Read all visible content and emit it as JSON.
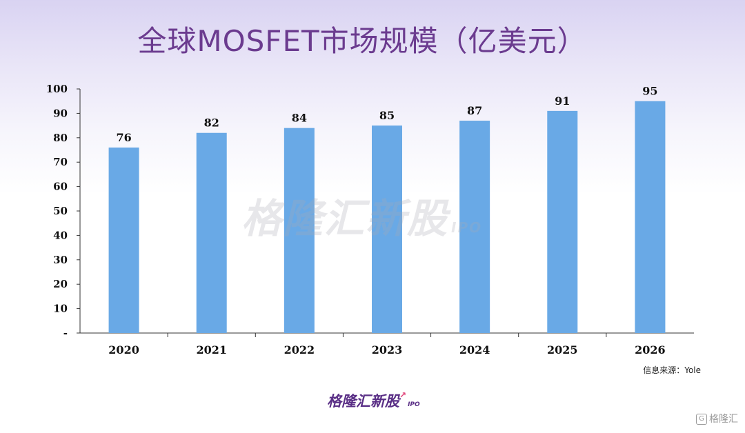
{
  "chart_data": {
    "type": "bar",
    "title": "全球MOSFET市场规模（亿美元）",
    "categories": [
      "2020",
      "2021",
      "2022",
      "2023",
      "2024",
      "2025",
      "2026"
    ],
    "values": [
      76,
      82,
      84,
      85,
      87,
      91,
      95
    ],
    "value_labels": [
      "76",
      "82",
      "84",
      "85",
      "87",
      "91",
      "95"
    ],
    "y_ticks": [
      "-",
      "10",
      "20",
      "30",
      "40",
      "50",
      "60",
      "70",
      "80",
      "90",
      "100"
    ],
    "ylim": [
      0,
      100
    ],
    "grid": false,
    "legend": "none",
    "bar_color": "#69a9e6"
  },
  "source": "信息来源：Yole",
  "watermark": {
    "text": "格隆汇新股",
    "sub": "IPO"
  },
  "footer_logo": {
    "text": "格隆汇新股",
    "sub": "IPO"
  },
  "corner_logo": {
    "icon": "g-logo-icon",
    "text": "格隆汇"
  },
  "colors": {
    "title": "#6b3b8f",
    "bar": "#69a9e6",
    "footer": "#5a2f86"
  }
}
